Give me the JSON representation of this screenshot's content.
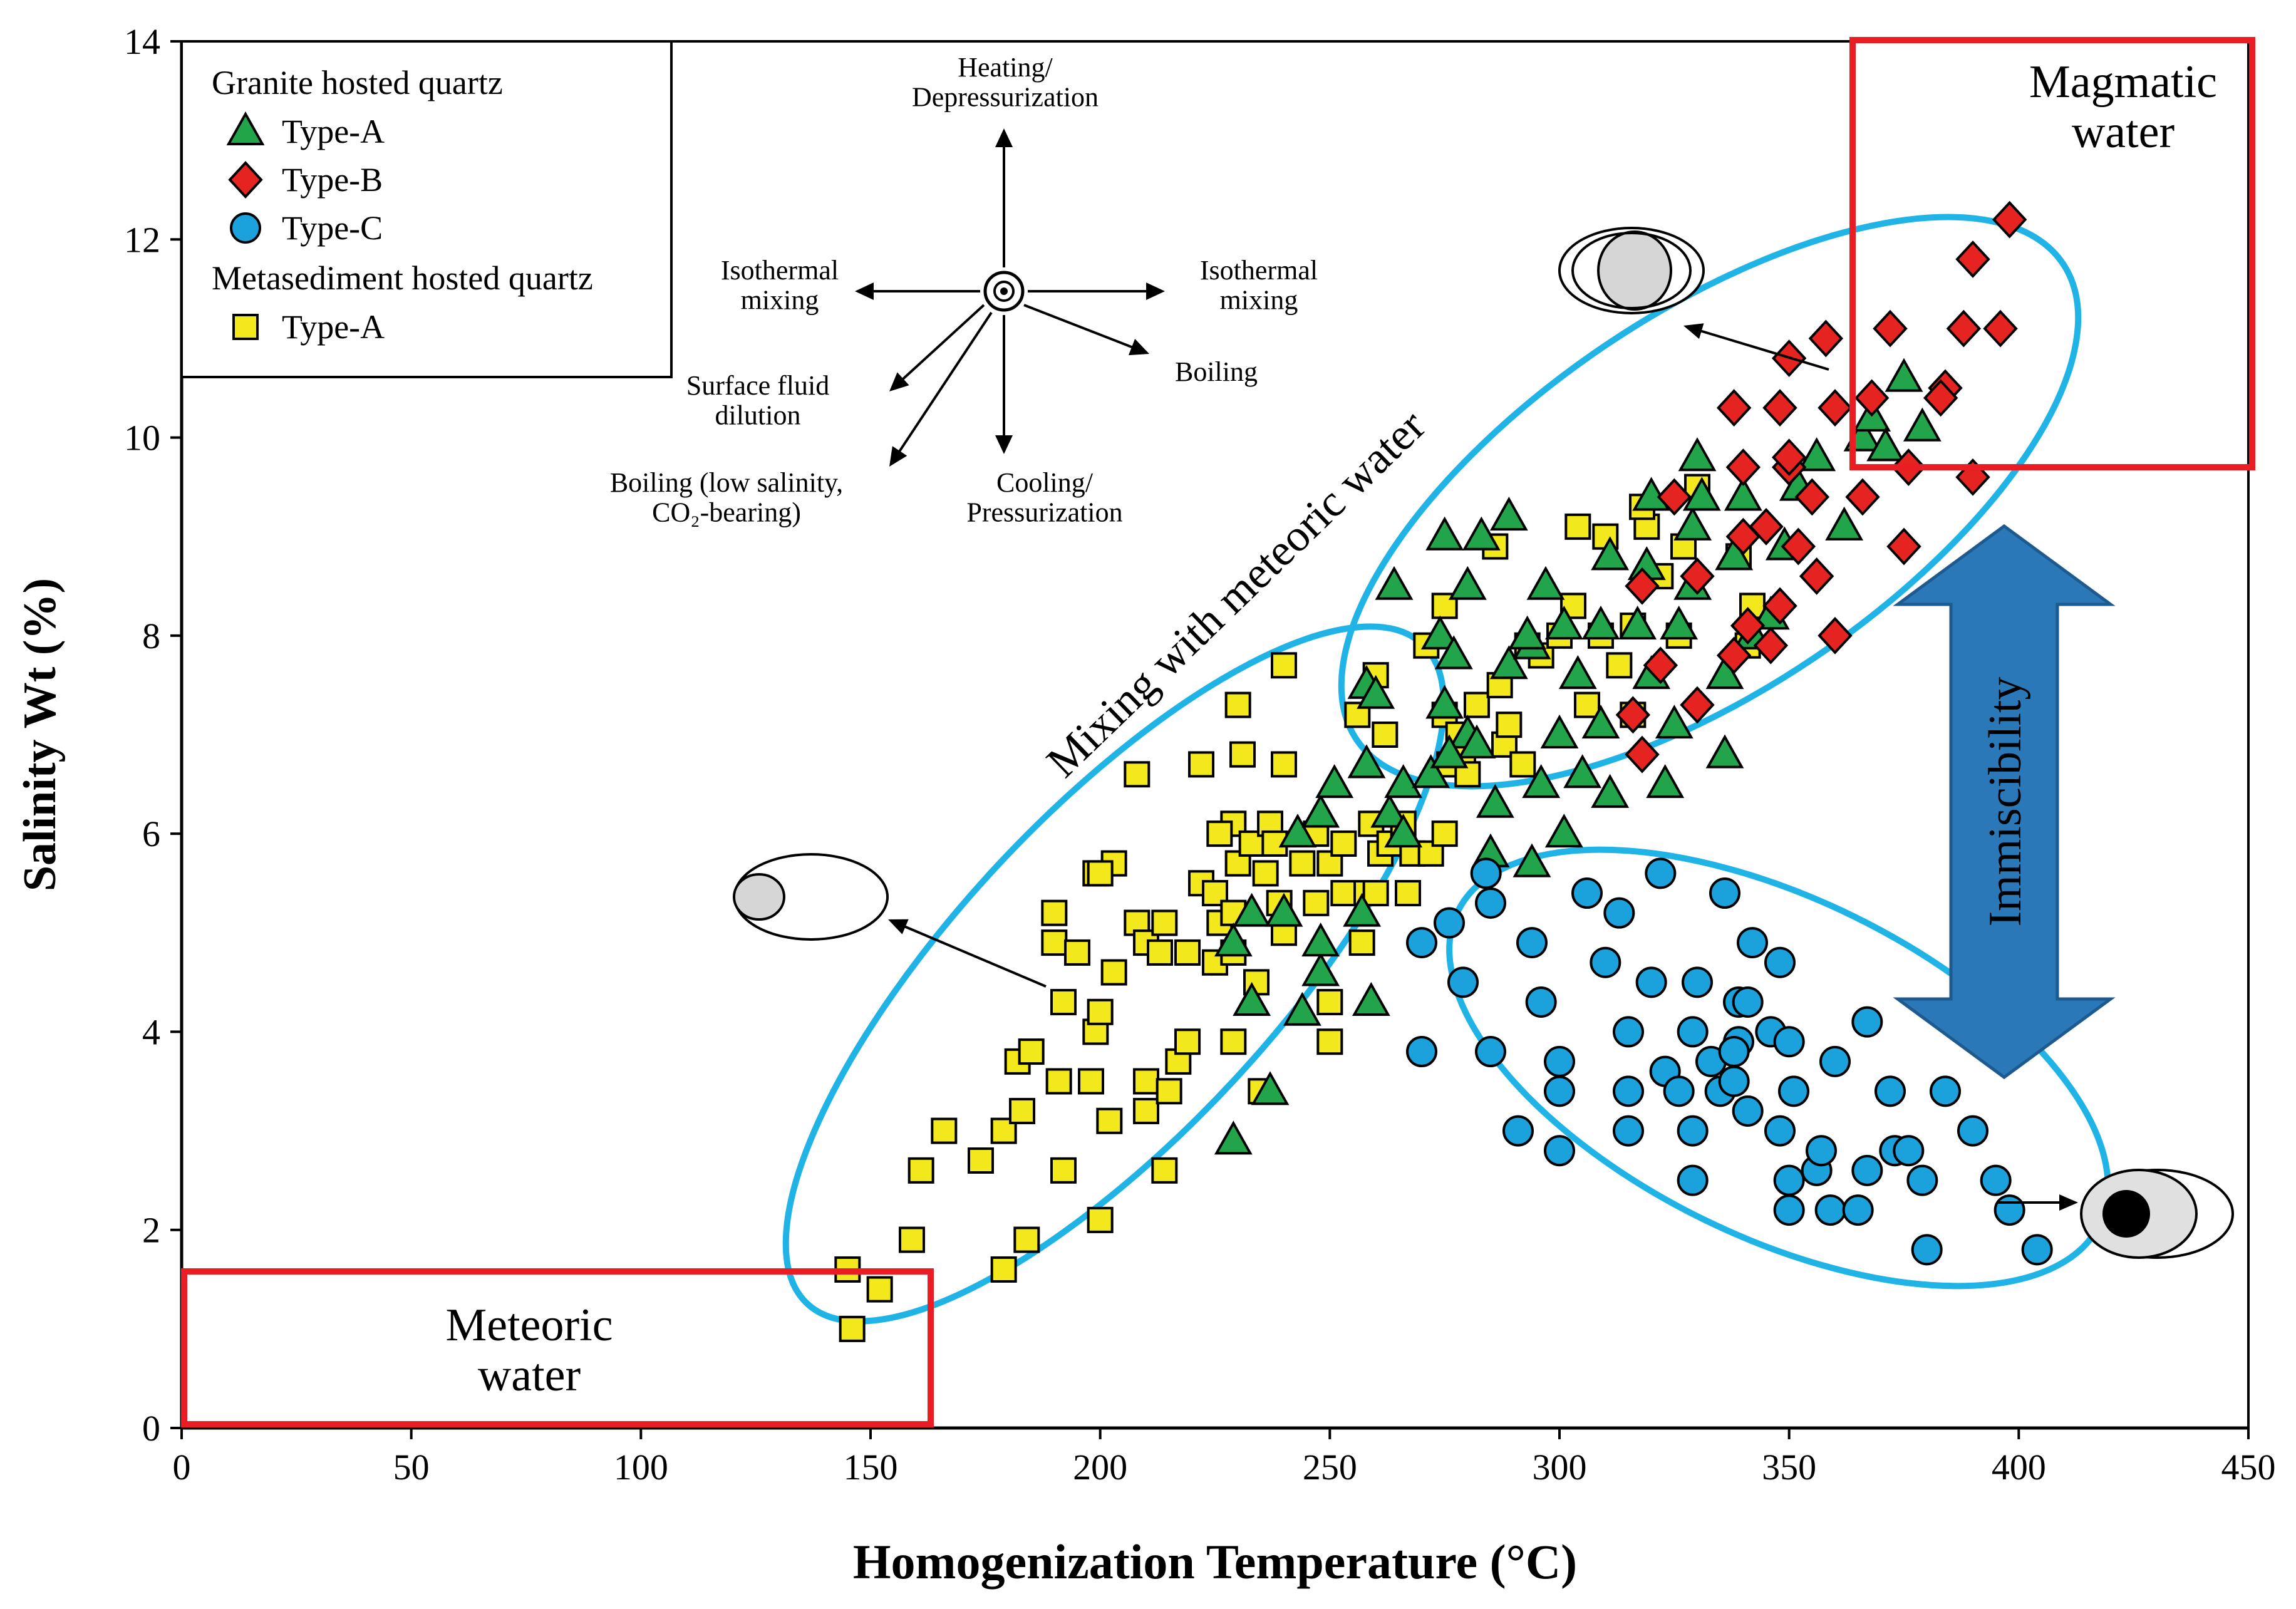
{
  "chart_data": {
    "type": "scatter",
    "xlabel": "Homogenization Temperature (°C)",
    "ylabel": "Salinity Wt (%)",
    "xlim": [
      0,
      450
    ],
    "ylim": [
      0,
      14
    ],
    "x_ticks": [
      0,
      50,
      100,
      150,
      200,
      250,
      300,
      350,
      400,
      450
    ],
    "y_ticks": [
      0,
      2,
      4,
      6,
      8,
      10,
      12,
      14
    ],
    "grid": false,
    "legend_position": "top-left",
    "legend": {
      "group1_title": "Granite hosted quartz",
      "group2_title": "Metasediment hosted quartz",
      "entries": [
        {
          "series": "granite_a",
          "label": "Type-A"
        },
        {
          "series": "granite_b",
          "label": "Type-B"
        },
        {
          "series": "granite_c",
          "label": "Type-C"
        },
        {
          "series": "meta_a",
          "label": "Type-A"
        }
      ]
    },
    "series": [
      {
        "id": "granite_a",
        "marker": "triangle",
        "color": "#22a54a",
        "points": [
          [
            229,
            2.9
          ],
          [
            237,
            3.4
          ],
          [
            244,
            4.2
          ],
          [
            248,
            4.6
          ],
          [
            233,
            4.3
          ],
          [
            233,
            5.2
          ],
          [
            229,
            4.9
          ],
          [
            240,
            5.2
          ],
          [
            248,
            4.9
          ],
          [
            259,
            4.3
          ],
          [
            257,
            5.2
          ],
          [
            243,
            6.0
          ],
          [
            248,
            6.2
          ],
          [
            251,
            6.5
          ],
          [
            263,
            6.2
          ],
          [
            266,
            6.0
          ],
          [
            258,
            6.7
          ],
          [
            266,
            6.5
          ],
          [
            272,
            6.6
          ],
          [
            264,
            8.5
          ],
          [
            258,
            7.5
          ],
          [
            275,
            7.3
          ],
          [
            280,
            7.0
          ],
          [
            274,
            8.0
          ],
          [
            275,
            9.0
          ],
          [
            280,
            8.5
          ],
          [
            282,
            6.9
          ],
          [
            286,
            6.3
          ],
          [
            285,
            5.8
          ],
          [
            294,
            5.7
          ],
          [
            296,
            6.5
          ],
          [
            301,
            6.0
          ],
          [
            300,
            7.0
          ],
          [
            289,
            7.7
          ],
          [
            294,
            7.9
          ],
          [
            297,
            8.5
          ],
          [
            301,
            8.1
          ],
          [
            304,
            7.6
          ],
          [
            305,
            6.6
          ],
          [
            309,
            7.1
          ],
          [
            311,
            6.4
          ],
          [
            309,
            8.1
          ],
          [
            311,
            8.8
          ],
          [
            317,
            8.1
          ],
          [
            319,
            8.7
          ],
          [
            320,
            9.4
          ],
          [
            320,
            7.6
          ],
          [
            323,
            6.5
          ],
          [
            325,
            7.1
          ],
          [
            326,
            8.1
          ],
          [
            329,
            8.5
          ],
          [
            329,
            9.1
          ],
          [
            331,
            9.4
          ],
          [
            330,
            9.8
          ],
          [
            338,
            8.8
          ],
          [
            340,
            9.4
          ],
          [
            336,
            7.6
          ],
          [
            336,
            6.8
          ],
          [
            342,
            8.0
          ],
          [
            346,
            8.2
          ],
          [
            349,
            8.9
          ],
          [
            352,
            9.5
          ],
          [
            356,
            9.8
          ],
          [
            362,
            9.1
          ],
          [
            366,
            10.0
          ],
          [
            368,
            10.2
          ],
          [
            371,
            9.9
          ],
          [
            375,
            10.6
          ],
          [
            379,
            10.1
          ],
          [
            283,
            9.0
          ],
          [
            289,
            9.2
          ],
          [
            293,
            8.0
          ],
          [
            277,
            7.8
          ],
          [
            260,
            7.4
          ],
          [
            276,
            6.8
          ]
        ]
      },
      {
        "id": "granite_b",
        "marker": "diamond",
        "color": "#e52421",
        "points": [
          [
            318,
            6.8
          ],
          [
            316,
            7.2
          ],
          [
            322,
            7.7
          ],
          [
            330,
            7.3
          ],
          [
            338,
            7.8
          ],
          [
            341,
            8.1
          ],
          [
            346,
            7.9
          ],
          [
            348,
            8.3
          ],
          [
            356,
            8.6
          ],
          [
            360,
            8.0
          ],
          [
            330,
            8.6
          ],
          [
            318,
            8.5
          ],
          [
            325,
            9.4
          ],
          [
            340,
            9.0
          ],
          [
            345,
            9.1
          ],
          [
            352,
            8.9
          ],
          [
            355,
            9.4
          ],
          [
            350,
            9.7
          ],
          [
            340,
            9.7
          ],
          [
            338,
            10.3
          ],
          [
            348,
            10.3
          ],
          [
            350,
            10.8
          ],
          [
            358,
            11.0
          ],
          [
            360,
            10.3
          ],
          [
            366,
            9.4
          ],
          [
            368,
            10.4
          ],
          [
            372,
            11.1
          ],
          [
            376,
            9.7
          ],
          [
            375,
            8.9
          ],
          [
            384,
            10.5
          ],
          [
            383,
            10.4
          ],
          [
            388,
            11.1
          ],
          [
            390,
            11.8
          ],
          [
            396,
            11.1
          ],
          [
            398,
            12.2
          ],
          [
            390,
            9.6
          ],
          [
            350,
            9.8
          ]
        ]
      },
      {
        "id": "granite_c",
        "marker": "circle",
        "color": "#1ba1dc",
        "points": [
          [
            270,
            3.8
          ],
          [
            276,
            5.1
          ],
          [
            284,
            5.6
          ],
          [
            285,
            5.3
          ],
          [
            285,
            3.8
          ],
          [
            279,
            4.5
          ],
          [
            270,
            4.9
          ],
          [
            294,
            4.9
          ],
          [
            296,
            4.3
          ],
          [
            300,
            3.7
          ],
          [
            300,
            3.4
          ],
          [
            291,
            3.0
          ],
          [
            300,
            2.8
          ],
          [
            306,
            5.4
          ],
          [
            310,
            4.7
          ],
          [
            313,
            5.2
          ],
          [
            315,
            4.0
          ],
          [
            315,
            3.4
          ],
          [
            315,
            3.0
          ],
          [
            320,
            4.5
          ],
          [
            322,
            5.6
          ],
          [
            323,
            3.6
          ],
          [
            329,
            4.0
          ],
          [
            330,
            4.5
          ],
          [
            329,
            3.0
          ],
          [
            329,
            2.5
          ],
          [
            333,
            3.7
          ],
          [
            335,
            3.4
          ],
          [
            336,
            5.4
          ],
          [
            339,
            4.3
          ],
          [
            339,
            3.9
          ],
          [
            338,
            3.5
          ],
          [
            341,
            4.3
          ],
          [
            341,
            3.2
          ],
          [
            342,
            4.9
          ],
          [
            346,
            4.0
          ],
          [
            348,
            4.7
          ],
          [
            350,
            3.9
          ],
          [
            351,
            3.4
          ],
          [
            348,
            3.0
          ],
          [
            350,
            2.5
          ],
          [
            350,
            2.2
          ],
          [
            356,
            2.6
          ],
          [
            357,
            2.8
          ],
          [
            359,
            2.2
          ],
          [
            360,
            3.7
          ],
          [
            365,
            2.2
          ],
          [
            367,
            4.1
          ],
          [
            367,
            2.6
          ],
          [
            372,
            3.4
          ],
          [
            373,
            2.8
          ],
          [
            376,
            2.8
          ],
          [
            379,
            2.5
          ],
          [
            380,
            1.8
          ],
          [
            384,
            3.4
          ],
          [
            390,
            3.0
          ],
          [
            395,
            2.5
          ],
          [
            398,
            2.2
          ],
          [
            404,
            1.8
          ],
          [
            338,
            3.8
          ],
          [
            326,
            3.4
          ]
        ]
      },
      {
        "id": "meta_a",
        "marker": "square",
        "color": "#f2e81c",
        "points": [
          [
            145,
            1.6
          ],
          [
            146,
            1.0
          ],
          [
            152,
            1.4
          ],
          [
            159,
            1.9
          ],
          [
            161,
            2.6
          ],
          [
            166,
            3.0
          ],
          [
            174,
            2.7
          ],
          [
            179,
            3.0
          ],
          [
            179,
            1.6
          ],
          [
            184,
            1.9
          ],
          [
            183,
            3.2
          ],
          [
            182,
            3.7
          ],
          [
            185,
            3.8
          ],
          [
            191,
            3.5
          ],
          [
            192,
            2.6
          ],
          [
            192,
            4.3
          ],
          [
            199,
            4.0
          ],
          [
            200,
            4.2
          ],
          [
            198,
            3.5
          ],
          [
            202,
            3.1
          ],
          [
            200,
            2.1
          ],
          [
            210,
            3.2
          ],
          [
            210,
            3.5
          ],
          [
            214,
            2.6
          ],
          [
            215,
            3.4
          ],
          [
            217,
            3.7
          ],
          [
            219,
            3.9
          ],
          [
            190,
            5.2
          ],
          [
            190,
            4.9
          ],
          [
            195,
            4.8
          ],
          [
            199,
            5.6
          ],
          [
            203,
            5.7
          ],
          [
            203,
            4.6
          ],
          [
            208,
            5.1
          ],
          [
            210,
            4.9
          ],
          [
            213,
            4.8
          ],
          [
            219,
            4.8
          ],
          [
            222,
            5.5
          ],
          [
            225,
            5.4
          ],
          [
            225,
            4.7
          ],
          [
            226,
            5.1
          ],
          [
            229,
            4.8
          ],
          [
            229,
            5.2
          ],
          [
            230,
            5.7
          ],
          [
            229,
            6.1
          ],
          [
            231,
            6.8
          ],
          [
            233,
            5.9
          ],
          [
            236,
            5.6
          ],
          [
            237,
            6.1
          ],
          [
            238,
            5.9
          ],
          [
            239,
            5.3
          ],
          [
            240,
            5.0
          ],
          [
            244,
            5.7
          ],
          [
            247,
            5.3
          ],
          [
            250,
            5.7
          ],
          [
            253,
            5.9
          ],
          [
            253,
            5.4
          ],
          [
            257,
            4.9
          ],
          [
            258,
            5.4
          ],
          [
            259,
            6.1
          ],
          [
            261,
            5.8
          ],
          [
            263,
            5.9
          ],
          [
            266,
            6.1
          ],
          [
            267,
            5.4
          ],
          [
            268,
            5.8
          ],
          [
            272,
            5.8
          ],
          [
            275,
            6.0
          ],
          [
            275,
            7.2
          ],
          [
            276,
            6.7
          ],
          [
            278,
            7.0
          ],
          [
            279,
            6.8
          ],
          [
            280,
            6.6
          ],
          [
            282,
            7.3
          ],
          [
            287,
            7.5
          ],
          [
            288,
            6.9
          ],
          [
            289,
            7.1
          ],
          [
            292,
            6.7
          ],
          [
            293,
            7.9
          ],
          [
            296,
            7.8
          ],
          [
            303,
            8.3
          ],
          [
            304,
            9.1
          ],
          [
            306,
            7.3
          ],
          [
            310,
            9.0
          ],
          [
            313,
            7.7
          ],
          [
            316,
            7.2
          ],
          [
            316,
            8.1
          ],
          [
            319,
            9.1
          ],
          [
            322,
            8.6
          ],
          [
            326,
            8.0
          ],
          [
            330,
            9.5
          ],
          [
            341,
            7.9
          ],
          [
            342,
            8.3
          ],
          [
            339,
            8.8
          ],
          [
            327,
            8.9
          ],
          [
            208,
            6.6
          ],
          [
            222,
            6.7
          ],
          [
            230,
            7.3
          ],
          [
            240,
            7.7
          ],
          [
            240,
            6.7
          ],
          [
            226,
            6.0
          ],
          [
            235,
            3.4
          ],
          [
            234,
            4.5
          ],
          [
            229,
            3.9
          ],
          [
            250,
            4.3
          ],
          [
            250,
            3.9
          ],
          [
            256,
            7.2
          ],
          [
            262,
            7.0
          ],
          [
            260,
            7.6
          ],
          [
            271,
            7.9
          ],
          [
            275,
            8.3
          ],
          [
            300,
            8.0
          ],
          [
            309,
            8.0
          ],
          [
            260,
            5.4
          ],
          [
            247,
            6.0
          ],
          [
            286,
            8.9
          ],
          [
            318,
            9.3
          ],
          [
            200,
            5.6
          ],
          [
            214,
            5.1
          ]
        ]
      }
    ],
    "annotations": {
      "magmatic": "Magmatic\nwater",
      "meteoric": "Meteoric\nwater",
      "mixing": "Mixing with meteoric water",
      "immiscibility": "Immiscibility",
      "vectors": {
        "up": "Heating/\nDepressurization",
        "left": "Isothermal\nmixing",
        "right": "Isothermal\nmixing",
        "lowleft": "Surface fluid\ndilution",
        "lowright": "Boiling",
        "down": "Cooling/\nPressurization",
        "downleft": "Boiling (low salinity,\nCO₂-bearing)"
      }
    },
    "colors": {
      "ellipse": "#1fb3e6",
      "box": "#ea1c24",
      "arrow_fill": "#2b78b8"
    }
  }
}
